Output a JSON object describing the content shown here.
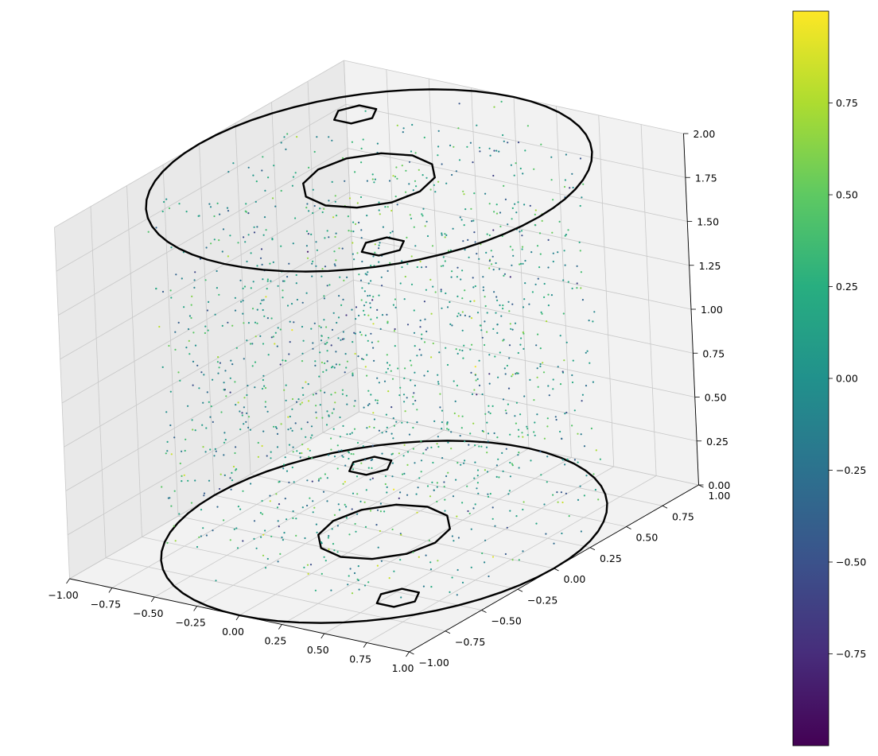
{
  "chart_data": {
    "type": "scatter",
    "projection": "3d",
    "title": "",
    "xlabel": "",
    "ylabel": "",
    "zlabel": "",
    "xlim": [
      -1,
      1
    ],
    "ylim": [
      -1,
      1
    ],
    "zlim": [
      0,
      2
    ],
    "grid": true,
    "x_ticks": [
      "−1.00",
      "−0.75",
      "−0.50",
      "−0.25",
      "0.00",
      "0.25",
      "0.50",
      "0.75",
      "1.00"
    ],
    "y_ticks": [
      "−1.00",
      "−0.75",
      "−0.50",
      "−0.25",
      "0.00",
      "0.25",
      "0.50",
      "0.75",
      "1.00"
    ],
    "z_ticks": [
      "0.00",
      "0.25",
      "0.50",
      "0.75",
      "1.00",
      "1.25",
      "1.50",
      "1.75",
      "2.00"
    ],
    "scatter": {
      "description": "random points filling a cylinder of radius 1 and height 2, colored by value",
      "point_count": 1500,
      "x_range": [
        -1,
        1
      ],
      "y_range": [
        -1,
        1
      ],
      "z_range": [
        0,
        2
      ],
      "color_range": [
        -1,
        1
      ],
      "colormap": "viridis"
    },
    "contours": [
      {
        "z": 0,
        "level": "outer circle",
        "center": [
          0,
          0
        ],
        "radius": 1.0
      },
      {
        "z": 0,
        "level": "inner circle",
        "center": [
          0,
          0
        ],
        "radius": 0.3
      },
      {
        "z": 0,
        "level": "small loop",
        "center": [
          0.55,
          -0.55
        ],
        "radius": 0.1
      },
      {
        "z": 0,
        "level": "small loop",
        "center": [
          -0.55,
          0.55
        ],
        "radius": 0.1
      },
      {
        "z": 2,
        "level": "outer circle",
        "center": [
          0,
          0
        ],
        "radius": 1.0
      },
      {
        "z": 2,
        "level": "inner circle",
        "center": [
          0,
          0
        ],
        "radius": 0.3
      },
      {
        "z": 2,
        "level": "small loop",
        "center": [
          0.55,
          -0.55
        ],
        "radius": 0.1
      },
      {
        "z": 2,
        "level": "small loop",
        "center": [
          -0.55,
          0.55
        ],
        "radius": 0.1
      }
    ],
    "colorbar": {
      "colormap": "viridis",
      "range": [
        -1,
        1
      ],
      "ticks": [
        {
          "value": 0.75,
          "label": "0.75"
        },
        {
          "value": 0.5,
          "label": "0.50"
        },
        {
          "value": 0.25,
          "label": "0.25"
        },
        {
          "value": 0.0,
          "label": "0.00"
        },
        {
          "value": -0.25,
          "label": "−0.25"
        },
        {
          "value": -0.5,
          "label": "−0.50"
        },
        {
          "value": -0.75,
          "label": "−0.75"
        }
      ]
    },
    "colors": {
      "pane": "#f2f2f2",
      "pane_side": "#e9e9e9",
      "grid": "#c8c8c8",
      "contour": "#000000"
    }
  }
}
